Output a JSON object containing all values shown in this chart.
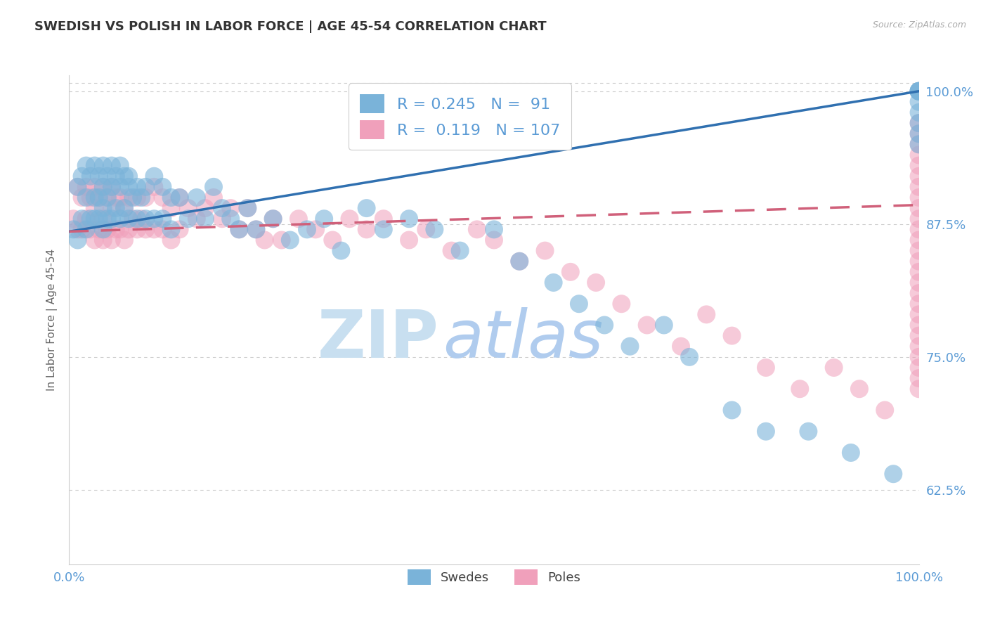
{
  "title": "SWEDISH VS POLISH IN LABOR FORCE | AGE 45-54 CORRELATION CHART",
  "source_text": "Source: ZipAtlas.com",
  "ylabel": "In Labor Force | Age 45-54",
  "xlim": [
    0.0,
    1.0
  ],
  "ylim": [
    0.555,
    1.015
  ],
  "yticks": [
    0.625,
    0.75,
    0.875,
    1.0
  ],
  "ytick_labels": [
    "62.5%",
    "75.0%",
    "87.5%",
    "100.0%"
  ],
  "xtick_positions": [
    0.0,
    1.0
  ],
  "xtick_labels": [
    "0.0%",
    "100.0%"
  ],
  "blue_R": 0.245,
  "blue_N": 91,
  "pink_R": 0.119,
  "pink_N": 107,
  "blue_color": "#7ab3d9",
  "pink_color": "#f0a0bb",
  "blue_line_color": "#3070b0",
  "pink_line_color": "#d0607a",
  "title_color": "#333333",
  "axis_label_color": "#5b9bd5",
  "watermark_zip_color": "#c8dff0",
  "watermark_atlas_color": "#b0ccee",
  "background_color": "#ffffff",
  "legend_label_swedes": "Swedes",
  "legend_label_poles": "Poles",
  "blue_trend_x": [
    0.0,
    1.0
  ],
  "blue_trend_y": [
    0.868,
    1.0
  ],
  "pink_trend_x": [
    0.0,
    1.0
  ],
  "pink_trend_y": [
    0.868,
    0.893
  ],
  "pink_trend_dashed": true,
  "blue_x": [
    0.005,
    0.01,
    0.01,
    0.015,
    0.015,
    0.02,
    0.02,
    0.02,
    0.025,
    0.025,
    0.03,
    0.03,
    0.03,
    0.035,
    0.035,
    0.035,
    0.04,
    0.04,
    0.04,
    0.04,
    0.045,
    0.045,
    0.045,
    0.05,
    0.05,
    0.05,
    0.055,
    0.055,
    0.06,
    0.06,
    0.06,
    0.065,
    0.065,
    0.07,
    0.07,
    0.07,
    0.075,
    0.08,
    0.08,
    0.085,
    0.09,
    0.09,
    0.1,
    0.1,
    0.11,
    0.11,
    0.12,
    0.12,
    0.13,
    0.14,
    0.15,
    0.16,
    0.17,
    0.18,
    0.19,
    0.2,
    0.21,
    0.22,
    0.24,
    0.26,
    0.28,
    0.3,
    0.32,
    0.35,
    0.37,
    0.4,
    0.43,
    0.46,
    0.5,
    0.53,
    0.57,
    0.6,
    0.63,
    0.66,
    0.7,
    0.73,
    0.78,
    0.82,
    0.87,
    0.92,
    0.97,
    1.0,
    1.0,
    1.0,
    1.0,
    1.0,
    1.0,
    1.0,
    1.0,
    1.0,
    1.0
  ],
  "blue_y": [
    0.87,
    0.91,
    0.86,
    0.92,
    0.88,
    0.93,
    0.9,
    0.87,
    0.92,
    0.88,
    0.93,
    0.9,
    0.88,
    0.92,
    0.9,
    0.88,
    0.93,
    0.91,
    0.89,
    0.87,
    0.92,
    0.9,
    0.88,
    0.93,
    0.91,
    0.88,
    0.92,
    0.89,
    0.93,
    0.91,
    0.88,
    0.92,
    0.89,
    0.92,
    0.91,
    0.88,
    0.9,
    0.91,
    0.88,
    0.9,
    0.91,
    0.88,
    0.92,
    0.88,
    0.91,
    0.88,
    0.9,
    0.87,
    0.9,
    0.88,
    0.9,
    0.88,
    0.91,
    0.89,
    0.88,
    0.87,
    0.89,
    0.87,
    0.88,
    0.86,
    0.87,
    0.88,
    0.85,
    0.89,
    0.87,
    0.88,
    0.87,
    0.85,
    0.87,
    0.84,
    0.82,
    0.8,
    0.78,
    0.76,
    0.78,
    0.75,
    0.7,
    0.68,
    0.68,
    0.66,
    0.64,
    1.0,
    1.0,
    1.0,
    1.0,
    1.0,
    0.99,
    0.98,
    0.97,
    0.96,
    0.95
  ],
  "pink_x": [
    0.005,
    0.01,
    0.01,
    0.015,
    0.015,
    0.02,
    0.02,
    0.025,
    0.025,
    0.03,
    0.03,
    0.03,
    0.035,
    0.035,
    0.04,
    0.04,
    0.04,
    0.045,
    0.045,
    0.05,
    0.05,
    0.05,
    0.055,
    0.055,
    0.06,
    0.06,
    0.065,
    0.065,
    0.07,
    0.07,
    0.075,
    0.08,
    0.08,
    0.085,
    0.09,
    0.09,
    0.1,
    0.1,
    0.11,
    0.11,
    0.12,
    0.12,
    0.13,
    0.13,
    0.14,
    0.15,
    0.16,
    0.17,
    0.18,
    0.19,
    0.2,
    0.21,
    0.22,
    0.23,
    0.24,
    0.25,
    0.27,
    0.29,
    0.31,
    0.33,
    0.35,
    0.37,
    0.4,
    0.42,
    0.45,
    0.48,
    0.5,
    0.53,
    0.56,
    0.59,
    0.62,
    0.65,
    0.68,
    0.72,
    0.75,
    0.78,
    0.82,
    0.86,
    0.9,
    0.93,
    0.96,
    1.0,
    1.0,
    1.0,
    1.0,
    1.0,
    1.0,
    1.0,
    1.0,
    1.0,
    1.0,
    1.0,
    1.0,
    1.0,
    1.0,
    1.0,
    1.0,
    1.0,
    1.0,
    1.0,
    1.0,
    1.0,
    1.0,
    1.0,
    1.0,
    1.0,
    1.0
  ],
  "pink_y": [
    0.88,
    0.91,
    0.87,
    0.9,
    0.87,
    0.91,
    0.88,
    0.9,
    0.87,
    0.91,
    0.89,
    0.86,
    0.9,
    0.87,
    0.91,
    0.88,
    0.86,
    0.9,
    0.87,
    0.91,
    0.89,
    0.86,
    0.9,
    0.87,
    0.9,
    0.87,
    0.89,
    0.86,
    0.9,
    0.87,
    0.88,
    0.9,
    0.87,
    0.88,
    0.9,
    0.87,
    0.91,
    0.87,
    0.9,
    0.87,
    0.89,
    0.86,
    0.9,
    0.87,
    0.89,
    0.88,
    0.89,
    0.9,
    0.88,
    0.89,
    0.87,
    0.89,
    0.87,
    0.86,
    0.88,
    0.86,
    0.88,
    0.87,
    0.86,
    0.88,
    0.87,
    0.88,
    0.86,
    0.87,
    0.85,
    0.87,
    0.86,
    0.84,
    0.85,
    0.83,
    0.82,
    0.8,
    0.78,
    0.76,
    0.79,
    0.77,
    0.74,
    0.72,
    0.74,
    0.72,
    0.7,
    0.97,
    0.96,
    0.95,
    0.94,
    0.93,
    0.92,
    0.91,
    0.9,
    0.89,
    0.88,
    0.87,
    0.86,
    0.85,
    0.84,
    0.83,
    0.82,
    0.81,
    0.8,
    0.79,
    0.78,
    0.77,
    0.76,
    0.75,
    0.74,
    0.73,
    0.72
  ]
}
